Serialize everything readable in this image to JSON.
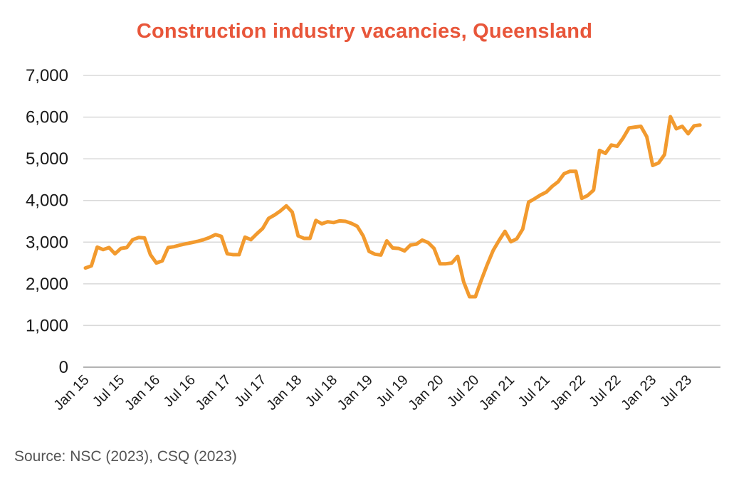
{
  "chart_data": {
    "type": "line",
    "title": "Construction industry vacancies, Queensland",
    "source": "Source: NSC (2023), CSQ (2023)",
    "xlabel": "",
    "ylabel": "",
    "ylim": [
      0,
      7000
    ],
    "yticks": [
      0,
      1000,
      2000,
      3000,
      4000,
      5000,
      6000,
      7000
    ],
    "ytick_labels": [
      "0",
      "1,000",
      "2,000",
      "3,000",
      "4,000",
      "5,000",
      "6,000",
      "7,000"
    ],
    "xtick_labels": [
      "Jan 15",
      "Jul 15",
      "Jan 16",
      "Jul 16",
      "Jan 17",
      "Jul 17",
      "Jan 18",
      "Jul 18",
      "Jan 19",
      "Jul 19",
      "Jan 20",
      "Jul 20",
      "Jan 21",
      "Jul 21",
      "Jan 22",
      "Jul 22",
      "Jan 23",
      "Jul 23"
    ],
    "grid": true,
    "legend": "none",
    "line_color": "#f29a2e",
    "title_color": "#e8563a",
    "series": [
      {
        "values": [
          2380,
          2430,
          2880,
          2820,
          2870,
          2720,
          2850,
          2870,
          3060,
          3110,
          3100,
          2700,
          2500,
          2550,
          2870,
          2890,
          2930,
          2960,
          2990,
          3020,
          3060,
          3110,
          3180,
          3140,
          2720,
          2700,
          2700,
          3120,
          3060,
          3200,
          3330,
          3570,
          3650,
          3750,
          3870,
          3720,
          3150,
          3090,
          3090,
          3520,
          3440,
          3490,
          3470,
          3510,
          3500,
          3450,
          3380,
          3150,
          2780,
          2710,
          2690,
          3030,
          2860,
          2850,
          2790,
          2930,
          2950,
          3050,
          2990,
          2850,
          2480,
          2480,
          2500,
          2660,
          2050,
          1690,
          1690,
          2090,
          2460,
          2800,
          3040,
          3260,
          3010,
          3080,
          3310,
          3960,
          4040,
          4130,
          4200,
          4340,
          4450,
          4640,
          4700,
          4700,
          4050,
          4120,
          4250,
          5200,
          5130,
          5330,
          5300,
          5500,
          5740,
          5760,
          5780,
          5530,
          4840,
          4900,
          5100,
          6010,
          5720,
          5780,
          5600,
          5790,
          5810
        ]
      }
    ]
  }
}
